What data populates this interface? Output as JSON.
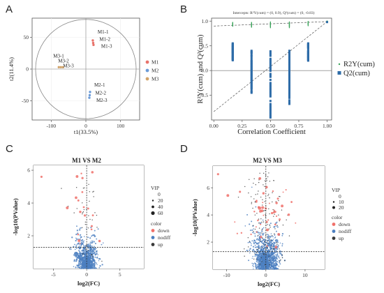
{
  "chart_data": [
    {
      "panel": "A",
      "type": "scatter",
      "title": "",
      "xlabel": "t1(33.5%)",
      "ylabel": "t2(11.4%)",
      "xlim": [
        -155,
        155
      ],
      "ylim": [
        -80,
        80
      ],
      "xticks": [
        -100,
        0,
        100
      ],
      "yticks": [
        -50,
        0,
        50
      ],
      "ellipse": {
        "cx": 0,
        "cy": 0,
        "rx": 145,
        "ry": 78
      },
      "series": [
        {
          "name": "M1",
          "color": "#e8736b",
          "points": [
            [
              20,
              45
            ],
            [
              21,
              41
            ],
            [
              22,
              38
            ]
          ],
          "labels": [
            "M1-1",
            "M1-2",
            "M1-3"
          ]
        },
        {
          "name": "M2",
          "color": "#6b9bd8",
          "points": [
            [
              12,
              -36
            ],
            [
              11,
              -41
            ],
            [
              10,
              -45
            ]
          ],
          "labels": [
            "M2-1",
            "M2-2",
            "M2-3"
          ]
        },
        {
          "name": "M3",
          "color": "#d2a46a",
          "points": [
            [
              -78,
              3
            ],
            [
              -72,
              3
            ],
            [
              -66,
              3
            ]
          ],
          "labels": [
            "M3-1",
            "M3-2",
            "M3-3"
          ]
        }
      ]
    },
    {
      "panel": "B",
      "type": "scatter",
      "title": "Intercepts:  R²Y(cum) = (0, 0.9),  Q²(cum) = (0, -0.83)",
      "xlabel": "Correlation Coefficient",
      "ylabel": "R²Y(cum) and  Q²(cum)",
      "xlim": [
        -0.02,
        1.04
      ],
      "ylim": [
        -1.0,
        1.06
      ],
      "xticks": [
        0.0,
        0.25,
        0.5,
        0.75,
        1.0
      ],
      "yticks": [
        -0.5,
        0.0,
        0.5,
        1.0
      ],
      "r2_line": {
        "intercept": 0.9,
        "end": 0.99
      },
      "q2_line": {
        "intercept": -0.83,
        "end": 0.99
      },
      "series": [
        {
          "name": "R2Y(cum)",
          "color": "#3aa45a",
          "x": [
            0.167,
            0.333,
            0.5,
            0.667,
            0.833
          ],
          "ymin": [
            0.91,
            0.89,
            0.88,
            0.88,
            0.92
          ],
          "ymax": [
            0.96,
            0.96,
            0.97,
            0.97,
            0.98
          ]
        },
        {
          "name": "Q2(cum)",
          "color": "#2e6ca8",
          "x": [
            0.167,
            0.333,
            0.5,
            0.667,
            0.833
          ],
          "ymin": [
            0.2,
            -0.45,
            -0.95,
            -0.7,
            0.2
          ],
          "ymax": [
            0.55,
            0.4,
            0.42,
            0.4,
            0.55
          ]
        }
      ],
      "endpoint": {
        "x": 1.0,
        "r2": 0.99,
        "q2": 0.98
      }
    },
    {
      "panel": "C",
      "type": "scatter",
      "title": "M1 VS M2",
      "xlabel": "log2(FC)",
      "ylabel": "-log10(PValue)",
      "xlim": [
        -8,
        8.6
      ],
      "ylim": [
        0,
        6.3
      ],
      "xticks": [
        -5,
        0,
        5
      ],
      "yticks": [
        2,
        4,
        6
      ],
      "threshold_y": 1.3,
      "legend": {
        "vip_title": "VIP",
        "vip_values": [
          "0",
          "20",
          "40",
          "60"
        ],
        "color_title": "color",
        "color_items": [
          "down",
          "nodiff",
          "up"
        ]
      }
    },
    {
      "panel": "D",
      "type": "scatter",
      "title": "M2 VS M3",
      "xlabel": "log2(FC)",
      "ylabel": "-log10(PValue)",
      "xlim": [
        -13.5,
        15
      ],
      "ylim": [
        0,
        7.6
      ],
      "xticks": [
        -10,
        0,
        10
      ],
      "yticks": [
        2,
        4,
        6
      ],
      "threshold_y": 1.3,
      "legend": {
        "vip_title": "VIP",
        "vip_values": [
          "0",
          "10",
          "20"
        ],
        "color_title": "color",
        "color_items": [
          "down",
          "nodiff",
          "up"
        ]
      }
    }
  ],
  "panels": {
    "a": {
      "letter": "A",
      "legend": [
        "M1",
        "M2",
        "M3"
      ]
    },
    "b": {
      "letter": "B",
      "legend": [
        "R2Y(cum)",
        "Q2(cum)"
      ],
      "ylabel_part1": "R²Y(cum) and  Q²(cum)"
    },
    "c": {
      "letter": "C"
    },
    "d": {
      "letter": "D"
    }
  },
  "colors": {
    "m1": "#e8736b",
    "m2": "#6b9bd8",
    "m3": "#d2a46a",
    "r2": "#3aa45a",
    "q2": "#2e6ca8",
    "down": "#f0706a",
    "nodiff": "#4c7fc0",
    "up": "#3a3a3a"
  }
}
